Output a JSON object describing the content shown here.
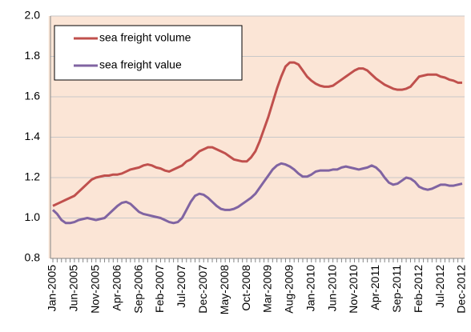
{
  "chart_data": {
    "type": "line",
    "categories": [
      "Jan-2005",
      null,
      null,
      null,
      null,
      "Jun-2005",
      null,
      null,
      null,
      null,
      "Nov-2005",
      null,
      null,
      null,
      null,
      "Apr-2006",
      null,
      null,
      null,
      null,
      "Sep-2006",
      null,
      null,
      null,
      null,
      "Feb-2007",
      null,
      null,
      null,
      null,
      "Jul-2007",
      null,
      null,
      null,
      null,
      "Dec-2007",
      null,
      null,
      null,
      null,
      "May-2008",
      null,
      null,
      null,
      null,
      "Oct-2008",
      null,
      null,
      null,
      null,
      "Mar-2009",
      null,
      null,
      null,
      null,
      "Aug-2009",
      null,
      null,
      null,
      null,
      "Jan-2010",
      null,
      null,
      null,
      null,
      "Jun-2010",
      null,
      null,
      null,
      null,
      "Nov-2010",
      null,
      null,
      null,
      null,
      "Apr-2011",
      null,
      null,
      null,
      null,
      "Sep-2011",
      null,
      null,
      null,
      null,
      "Feb-2012",
      null,
      null,
      null,
      null,
      "Jul-2012",
      null,
      null,
      null,
      null,
      "Dec-2012"
    ],
    "series": [
      {
        "name": "sea freight volume",
        "color": "#c0504d",
        "values": [
          1.06,
          1.07,
          1.08,
          1.09,
          1.1,
          1.11,
          1.13,
          1.15,
          1.17,
          1.19,
          1.2,
          1.205,
          1.21,
          1.21,
          1.215,
          1.215,
          1.22,
          1.23,
          1.24,
          1.245,
          1.25,
          1.26,
          1.265,
          1.26,
          1.25,
          1.245,
          1.235,
          1.23,
          1.24,
          1.25,
          1.26,
          1.28,
          1.29,
          1.31,
          1.33,
          1.34,
          1.35,
          1.35,
          1.34,
          1.33,
          1.32,
          1.305,
          1.29,
          1.285,
          1.28,
          1.28,
          1.3,
          1.33,
          1.38,
          1.44,
          1.5,
          1.57,
          1.64,
          1.7,
          1.75,
          1.77,
          1.77,
          1.76,
          1.73,
          1.7,
          1.68,
          1.665,
          1.655,
          1.65,
          1.65,
          1.655,
          1.67,
          1.685,
          1.7,
          1.715,
          1.73,
          1.74,
          1.74,
          1.73,
          1.71,
          1.69,
          1.675,
          1.66,
          1.65,
          1.64,
          1.635,
          1.635,
          1.64,
          1.65,
          1.675,
          1.7,
          1.705,
          1.71,
          1.71,
          1.71,
          1.7,
          1.695,
          1.685,
          1.68,
          1.67,
          1.67
        ]
      },
      {
        "name": "sea freight value",
        "color": "#8064a2",
        "values": [
          1.04,
          1.02,
          0.99,
          0.975,
          0.975,
          0.98,
          0.99,
          0.995,
          1.0,
          0.995,
          0.99,
          0.995,
          1.0,
          1.02,
          1.04,
          1.06,
          1.075,
          1.08,
          1.07,
          1.05,
          1.03,
          1.02,
          1.015,
          1.01,
          1.005,
          1.0,
          0.99,
          0.98,
          0.975,
          0.98,
          1.0,
          1.04,
          1.08,
          1.11,
          1.12,
          1.115,
          1.1,
          1.08,
          1.06,
          1.045,
          1.04,
          1.04,
          1.045,
          1.055,
          1.07,
          1.085,
          1.1,
          1.12,
          1.15,
          1.18,
          1.21,
          1.24,
          1.26,
          1.27,
          1.265,
          1.255,
          1.24,
          1.22,
          1.205,
          1.205,
          1.215,
          1.23,
          1.235,
          1.235,
          1.235,
          1.24,
          1.24,
          1.25,
          1.255,
          1.25,
          1.245,
          1.24,
          1.245,
          1.25,
          1.26,
          1.25,
          1.23,
          1.2,
          1.175,
          1.165,
          1.17,
          1.185,
          1.2,
          1.195,
          1.18,
          1.155,
          1.145,
          1.14,
          1.145,
          1.155,
          1.165,
          1.165,
          1.16,
          1.16,
          1.165,
          1.17
        ]
      }
    ],
    "ylim": [
      0.8,
      2.0
    ],
    "yticks": [
      0.8,
      {
        "value": 1,
        "label": "1.0"
      },
      1.2,
      1.4,
      1.6,
      1.8,
      {
        "value": 2,
        "label": "2.0"
      }
    ],
    "grid": true,
    "legend": "top-left",
    "shade": {
      "from": "Jun-2008",
      "to": "Dec-2012",
      "color": "#fbe5d6"
    }
  }
}
